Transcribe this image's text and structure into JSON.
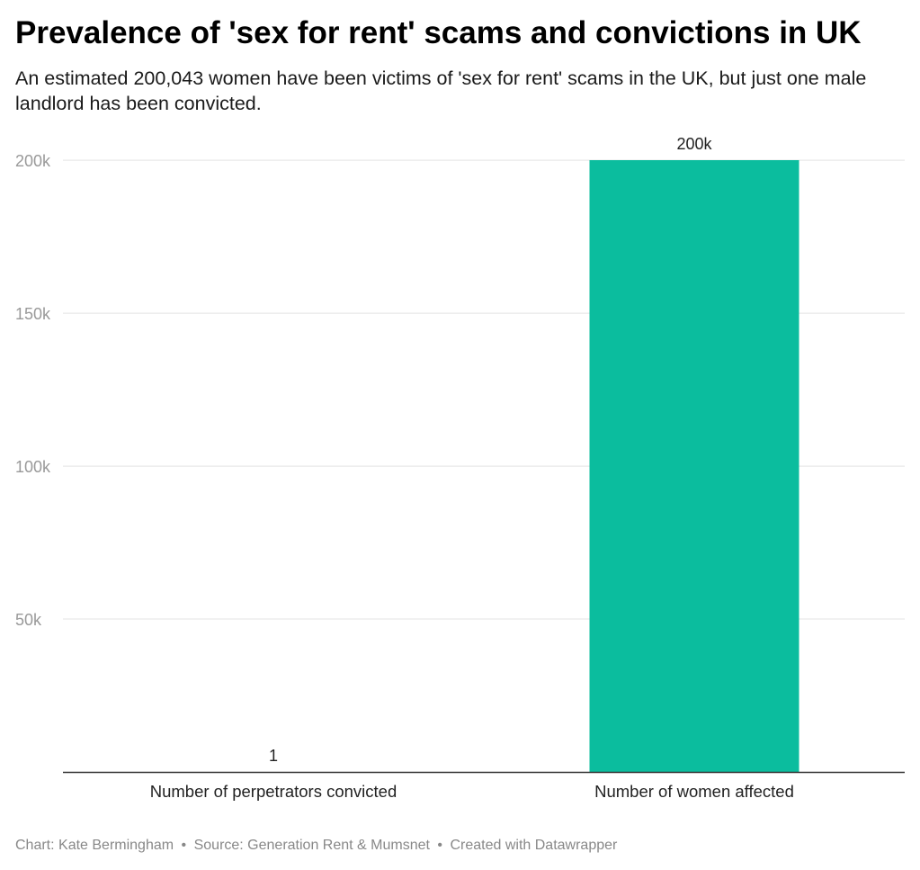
{
  "title": "Prevalence of 'sex for rent' scams and convictions in UK",
  "subtitle": "An estimated 200,043 women have been victims of 'sex for rent' scams in the UK, but just one male landlord has been convicted.",
  "footer": {
    "chart_credit": "Chart: Kate Bermingham",
    "source": "Source: Generation Rent & Mumsnet",
    "created_with": "Created with Datawrapper",
    "separator": "•"
  },
  "colors": {
    "bar": "#0bbd9e",
    "grid": "#e3e3e3",
    "axis": "#333333",
    "tick_label": "#999999"
  },
  "chart_data": {
    "type": "bar",
    "categories": [
      "Number of perpetrators convicted",
      "Number of women affected"
    ],
    "values": [
      1,
      200043
    ],
    "value_labels": [
      "1",
      "200k"
    ],
    "y_ticks": [
      50000,
      100000,
      150000,
      200000
    ],
    "y_tick_labels": [
      "50k",
      "100k",
      "150k",
      "200k"
    ],
    "ylim": [
      0,
      200043
    ],
    "title": "Prevalence of 'sex for rent' scams and convictions in UK",
    "xlabel": "",
    "ylabel": "",
    "grid": true,
    "legend": "none"
  }
}
